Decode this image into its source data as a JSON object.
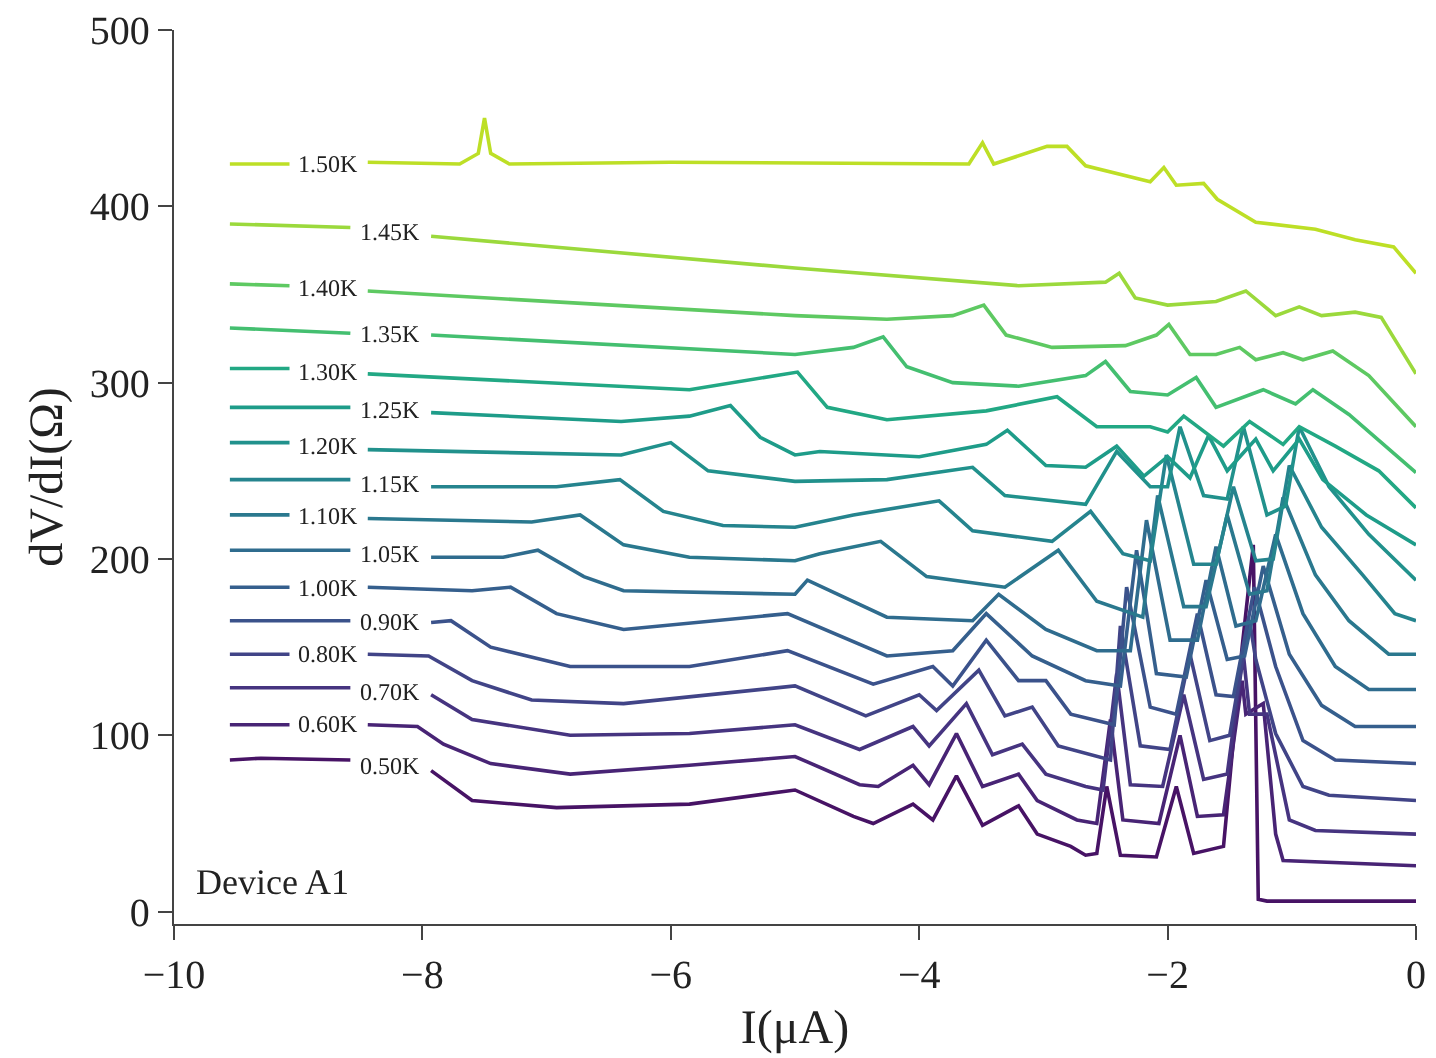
{
  "chart_data": {
    "type": "line",
    "xlabel": "I(μA)",
    "ylabel": "dV/dI(Ω)",
    "annotations": [
      "Device A1"
    ],
    "xlim": [
      -10,
      0
    ],
    "ylim": [
      -7,
      500
    ],
    "xticks": [
      {
        "value": -10,
        "label": "−10"
      },
      {
        "value": -8,
        "label": "−8"
      },
      {
        "value": -6,
        "label": "−6"
      },
      {
        "value": -4,
        "label": "−4"
      },
      {
        "value": -2,
        "label": "−2"
      },
      0
    ],
    "yticks": [
      0,
      100,
      200,
      300,
      400,
      500
    ],
    "legend": false,
    "line_style": "solid",
    "series": [
      {
        "name": "0.50K",
        "color": "#471365",
        "x": [
          -9.55,
          -9.3,
          -8.58,
          -8.26,
          -7.93,
          -7.6,
          -6.92,
          -5.85,
          -5.0,
          -4.53,
          -4.37,
          -4.05,
          -3.89,
          -3.7,
          -3.49,
          -3.2,
          -3.05,
          -2.78,
          -2.66,
          -2.57,
          -2.49,
          -2.38,
          -2.09,
          -1.93,
          -1.79,
          -1.55,
          -1.4,
          -1.31,
          -1.27,
          -1.2,
          -0.6,
          0
        ],
        "values": [
          86,
          87,
          86,
          null,
          80,
          63,
          59,
          61,
          69,
          54,
          50,
          61,
          52,
          77,
          49,
          60,
          44,
          37,
          32,
          33,
          71,
          32,
          31,
          71,
          33,
          37,
          150,
          208,
          7,
          6,
          6,
          6
        ]
      },
      {
        "name": "0.60K",
        "color": "#482475",
        "x": [
          -9.55,
          -9.07,
          -8.76,
          -8.44,
          -8.04,
          -7.83,
          -7.45,
          -6.81,
          -5.85,
          -5.0,
          -4.48,
          -4.33,
          -4.05,
          -3.92,
          -3.7,
          -3.49,
          -3.2,
          -3.05,
          -2.73,
          -2.57,
          -2.46,
          -2.36,
          -2.07,
          -1.9,
          -1.76,
          -1.55,
          -1.4,
          -1.37,
          -1.23,
          -1.13,
          -1.07,
          0
        ],
        "values": [
          106,
          106,
          null,
          106,
          105,
          95,
          84,
          78,
          83,
          88,
          72,
          71,
          83,
          72,
          101,
          71,
          78,
          63,
          52,
          50,
          109,
          52,
          50,
          100,
          54,
          55,
          131,
          112,
          118,
          44,
          29,
          26
        ]
      },
      {
        "name": "0.70K",
        "color": "#463480",
        "x": [
          -9.55,
          -8.58,
          -8.26,
          -7.93,
          -7.6,
          -6.81,
          -5.85,
          -5.0,
          -4.48,
          -4.05,
          -3.92,
          -3.62,
          -3.41,
          -3.17,
          -2.98,
          -2.66,
          -2.52,
          -2.41,
          -2.3,
          -2.04,
          -1.87,
          -1.71,
          -1.52,
          -1.39,
          -1.34,
          -1.2,
          -1.02,
          -0.81,
          0
        ],
        "values": [
          127,
          127,
          null,
          123,
          109,
          100,
          101,
          106,
          92,
          105,
          94,
          118,
          89,
          95,
          78,
          71,
          69,
          135,
          72,
          71,
          123,
          75,
          78,
          146,
          112,
          112,
          52,
          46,
          44
        ]
      },
      {
        "name": "0.80K",
        "color": "#414487",
        "x": [
          -9.55,
          -9.07,
          -8.76,
          -8.44,
          -7.95,
          -7.6,
          -7.12,
          -6.38,
          -5.0,
          -4.43,
          -4.0,
          -3.86,
          -3.52,
          -3.31,
          -3.09,
          -2.88,
          -2.46,
          -2.38,
          -2.22,
          -1.98,
          -1.82,
          -1.66,
          -1.5,
          -1.34,
          -1.29,
          -1.13,
          -0.91,
          -0.7,
          0
        ],
        "values": [
          146,
          146,
          null,
          146,
          145,
          131,
          120,
          118,
          128,
          111,
          123,
          114,
          137,
          111,
          116,
          94,
          86,
          162,
          94,
          92,
          146,
          97,
          100,
          165,
          143,
          101,
          71,
          66,
          63
        ]
      },
      {
        "name": "0.90K",
        "color": "#3b528b",
        "x": [
          -9.55,
          -8.58,
          -8.26,
          -7.93,
          -7.77,
          -7.45,
          -6.81,
          -5.85,
          -5.06,
          -4.37,
          -3.89,
          -3.73,
          -3.46,
          -3.2,
          -2.98,
          -2.78,
          -2.43,
          -2.33,
          -2.14,
          -1.93,
          -1.76,
          -1.61,
          -1.47,
          -1.3,
          -1.13,
          -0.91,
          -0.65,
          0
        ],
        "values": [
          165,
          165,
          null,
          164,
          165,
          150,
          139,
          139,
          148,
          129,
          139,
          128,
          154,
          131,
          131,
          112,
          106,
          184,
          116,
          112,
          169,
          123,
          122,
          184,
          139,
          97,
          86,
          84
        ]
      },
      {
        "name": "1.00K",
        "color": "#355f8d",
        "x": [
          -9.55,
          -9.07,
          -8.76,
          -8.44,
          -7.6,
          -7.29,
          -6.92,
          -6.38,
          -5.06,
          -4.26,
          -3.73,
          -3.46,
          -3.09,
          -2.66,
          -2.38,
          -2.25,
          -2.09,
          -1.85,
          -1.69,
          -1.52,
          -1.38,
          -1.23,
          -1.02,
          -0.76,
          -0.49,
          0
        ],
        "values": [
          184,
          184,
          null,
          184,
          182,
          184,
          169,
          160,
          169,
          145,
          148,
          169,
          145,
          131,
          128,
          205,
          135,
          133,
          188,
          143,
          145,
          196,
          146,
          117,
          105,
          105
        ]
      },
      {
        "name": "1.05K",
        "color": "#2f6c8e",
        "x": [
          -9.55,
          -8.58,
          -8.26,
          -7.93,
          -7.35,
          -7.07,
          -6.7,
          -6.38,
          -5.0,
          -4.9,
          -4.26,
          -3.57,
          -3.36,
          -2.98,
          -2.57,
          -2.3,
          -2.17,
          -1.98,
          -1.76,
          -1.61,
          -1.45,
          -1.29,
          -1.13,
          -0.91,
          -0.65,
          -0.38,
          0
        ],
        "values": [
          205,
          205,
          null,
          201,
          201,
          205,
          190,
          182,
          180,
          188,
          167,
          165,
          180,
          160,
          148,
          148,
          222,
          154,
          154,
          207,
          162,
          165,
          214,
          169,
          139,
          126,
          126
        ]
      },
      {
        "name": "1.10K",
        "color": "#2a788e",
        "x": [
          -9.55,
          -9.07,
          -8.76,
          -8.44,
          -7.12,
          -6.73,
          -6.38,
          -5.85,
          -5.0,
          -4.8,
          -4.31,
          -3.94,
          -3.31,
          -2.88,
          -2.57,
          -2.2,
          -2.08,
          -1.87,
          -1.69,
          -1.52,
          -1.34,
          -1.2,
          -1.07,
          -0.81,
          -0.54,
          -0.22,
          0
        ],
        "values": [
          225,
          225,
          null,
          223,
          221,
          225,
          208,
          201,
          199,
          203,
          210,
          190,
          184,
          205,
          176,
          167,
          236,
          173,
          173,
          225,
          180,
          182,
          235,
          191,
          165,
          146,
          146
        ]
      },
      {
        "name": "1.15K",
        "color": "#25848e",
        "x": [
          -9.55,
          -8.58,
          -8.26,
          -7.93,
          -6.92,
          -6.41,
          -6.06,
          -5.58,
          -5.0,
          -4.53,
          -3.84,
          -3.57,
          -2.93,
          -2.62,
          -2.36,
          -2.14,
          -2.01,
          -1.79,
          -1.61,
          -1.47,
          -1.29,
          -1.15,
          -1.02,
          -0.76,
          -0.43,
          -0.17,
          0
        ],
        "values": [
          245,
          245,
          null,
          241,
          241,
          245,
          227,
          219,
          218,
          225,
          233,
          216,
          210,
          227,
          203,
          199,
          259,
          197,
          197,
          241,
          199,
          200,
          253,
          218,
          191,
          169,
          165
        ]
      },
      {
        "name": "1.20K",
        "color": "#21918c",
        "x": [
          -9.55,
          -9.07,
          -8.76,
          -8.44,
          -6.4,
          -6.0,
          -5.7,
          -5.0,
          -4.26,
          -3.57,
          -3.31,
          -2.66,
          -2.41,
          -2.14,
          -2.0,
          -1.9,
          -1.71,
          -1.52,
          -1.39,
          -1.2,
          -1.05,
          -0.94,
          -0.7,
          -0.38,
          0
        ],
        "values": [
          266,
          266,
          null,
          262,
          259,
          266,
          250,
          244,
          245,
          252,
          236,
          231,
          261,
          241,
          241,
          275,
          236,
          234,
          275,
          225,
          230,
          275,
          241,
          214,
          188
        ]
      },
      {
        "name": "1.25K",
        "color": "#1e9c89",
        "x": [
          -9.55,
          -8.58,
          -8.26,
          -7.93,
          -6.4,
          -5.85,
          -5.52,
          -5.28,
          -5.0,
          -4.8,
          -4.0,
          -3.46,
          -3.29,
          -2.98,
          -2.66,
          -2.41,
          -2.19,
          -2.0,
          -1.82,
          -1.67,
          -1.52,
          -1.29,
          -1.15,
          -0.94,
          -0.75,
          -0.4,
          0
        ],
        "values": [
          286,
          286,
          null,
          283,
          278,
          281,
          287,
          269,
          259,
          261,
          258,
          265,
          273,
          253,
          252,
          264,
          247,
          258,
          246,
          270,
          250,
          268,
          250,
          268,
          245,
          225,
          208
        ]
      },
      {
        "name": "1.30K",
        "color": "#22a884",
        "x": [
          -9.55,
          -9.07,
          -8.76,
          -8.44,
          -5.85,
          -4.98,
          -4.74,
          -4.26,
          -3.46,
          -2.89,
          -2.57,
          -2.14,
          -2.0,
          -1.87,
          -1.55,
          -1.34,
          -1.07,
          -0.94,
          -0.65,
          -0.3,
          0
        ],
        "values": [
          308,
          308,
          null,
          305,
          296,
          306,
          286,
          279,
          284,
          292,
          275,
          275,
          272,
          281,
          264,
          278,
          265,
          275,
          264,
          250,
          229
        ]
      },
      {
        "name": "1.35K",
        "color": "#44bf70",
        "x": [
          -9.55,
          -8.58,
          -8.26,
          -7.93,
          -5.0,
          -4.53,
          -4.29,
          -4.1,
          -3.73,
          -3.2,
          -2.66,
          -2.5,
          -2.3,
          -2.0,
          -1.77,
          -1.61,
          -1.23,
          -0.97,
          -0.83,
          -0.54,
          0
        ],
        "values": [
          331,
          328,
          null,
          327,
          316,
          320,
          326,
          309,
          300,
          298,
          304,
          312,
          295,
          293,
          303,
          286,
          296,
          288,
          296,
          282,
          249
        ]
      },
      {
        "name": "1.40K",
        "color": "#5ec962",
        "x": [
          -9.55,
          -9.07,
          -8.76,
          -8.44,
          -5.0,
          -4.26,
          -3.73,
          -3.48,
          -3.3,
          -2.93,
          -2.34,
          -2.09,
          -1.99,
          -1.82,
          -1.61,
          -1.42,
          -1.29,
          -1.07,
          -0.91,
          -0.67,
          -0.38,
          0
        ],
        "values": [
          356,
          355,
          null,
          352,
          338,
          336,
          338,
          344,
          327,
          320,
          321,
          327,
          333,
          316,
          316,
          320,
          313,
          317,
          313,
          318,
          304,
          275
        ]
      },
      {
        "name": "1.45K",
        "color": "#9bd93c",
        "x": [
          -9.55,
          -8.58,
          -8.26,
          -7.93,
          -5.0,
          -3.2,
          -2.5,
          -2.39,
          -2.26,
          -2.0,
          -1.61,
          -1.37,
          -1.13,
          -0.94,
          -0.76,
          -0.49,
          -0.28,
          0
        ],
        "values": [
          390,
          388,
          null,
          383,
          365,
          355,
          357,
          362,
          348,
          344,
          346,
          352,
          338,
          343,
          338,
          340,
          337,
          305
        ]
      },
      {
        "name": "1.50K",
        "color": "#bddf26",
        "x": [
          -9.55,
          -9.07,
          -8.76,
          -8.44,
          -7.7,
          -7.55,
          -7.5,
          -7.45,
          -7.3,
          -6.0,
          -3.6,
          -3.49,
          -3.4,
          -2.97,
          -2.81,
          -2.66,
          -2.14,
          -2.03,
          -1.93,
          -1.71,
          -1.6,
          -1.29,
          -0.81,
          -0.49,
          -0.18,
          0
        ],
        "values": [
          424,
          424,
          null,
          425,
          424,
          430,
          450,
          430,
          424,
          425,
          424,
          436,
          424,
          434,
          434,
          423,
          414,
          422,
          412,
          413,
          404,
          391,
          387,
          381,
          377,
          362
        ]
      }
    ]
  }
}
